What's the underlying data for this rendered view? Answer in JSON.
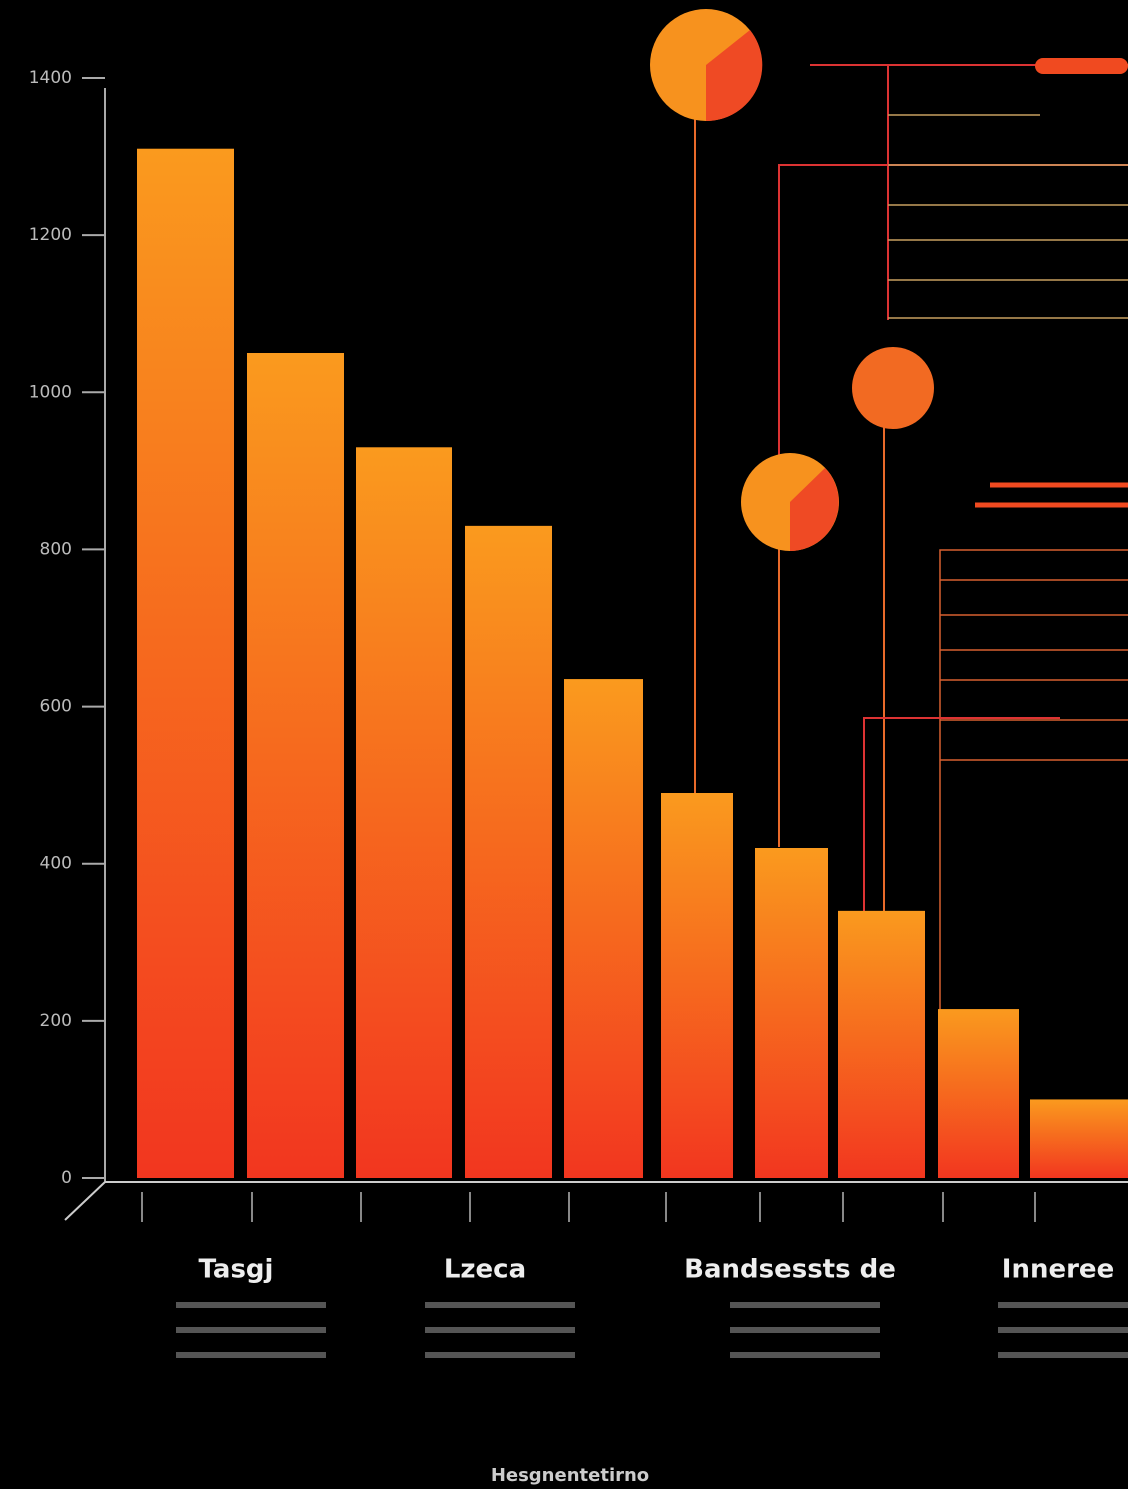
{
  "chart_data": {
    "type": "bar",
    "categories": [
      null,
      null,
      null,
      null,
      null,
      null,
      null,
      null,
      null,
      null
    ],
    "values": [
      1310,
      1050,
      930,
      830,
      635,
      490,
      420,
      340,
      215,
      100
    ],
    "color": [
      "#fa9a1e",
      "#f2361f"
    ],
    "ylim": [
      0,
      1400
    ],
    "yticks": [
      0,
      200,
      400,
      600,
      800,
      1000,
      1200,
      1400
    ],
    "group_labels": [
      "Tasgj",
      "Lzeca",
      "Bandsessts de",
      "Inneree"
    ],
    "x_label": "Hesgnentetirno"
  }
}
